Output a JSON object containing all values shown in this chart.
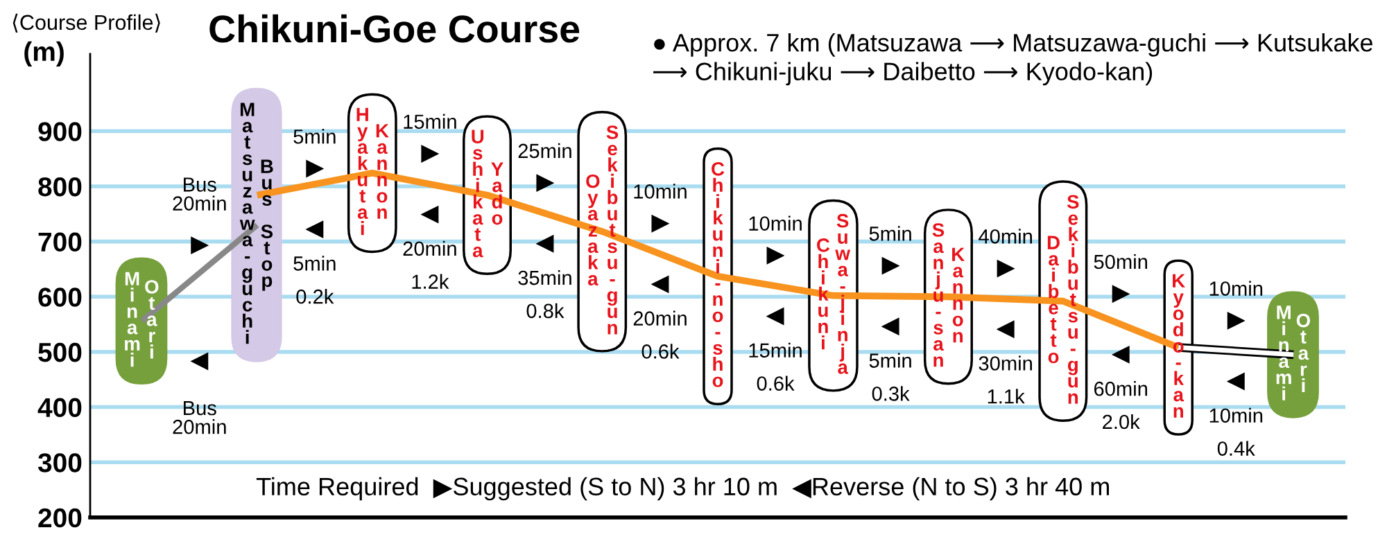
{
  "chart_data": {
    "type": "line",
    "title": "Chikuni-Goe Course",
    "subtitle": "⟨Course Profile⟩",
    "ylabel": "(m)",
    "categories": [
      "Minami Otari",
      "Matsuzawa-guchi Bus Stop",
      "Hyakutai Kannon",
      "Ushikata Yado",
      "Oyazaka Sekibutsu-gun",
      "Chikuni-no-sho",
      "Chikuni Suwa-jinja",
      "Sanju-san Kannon",
      "Daibetto Sekibutsu-gun",
      "Kyodo-kan",
      "Minami Otari"
    ],
    "series": [
      {
        "color": "#888888",
        "values": [
          556,
          730,
          null,
          null,
          null,
          null,
          null,
          null,
          null,
          null,
          null
        ]
      },
      {
        "color": "#f7931e",
        "values": [
          null,
          784,
          824,
          784,
          718,
          637,
          602,
          600,
          592,
          508,
          null
        ]
      },
      {
        "color": "#ffffff",
        "values": [
          null,
          null,
          null,
          null,
          null,
          null,
          null,
          null,
          null,
          508,
          495
        ]
      }
    ],
    "ylim": [
      200,
      1040
    ],
    "yticks": [
      200,
      300,
      400,
      500,
      600,
      700,
      800,
      900
    ],
    "grid": "y",
    "tick_labels": "y",
    "line_style": "solid",
    "annotations": [
      "● Approx. 7 km (Matsuzawa ⟶ Matsuzawa-guchi ⟶ Kutsukake\n⟶ Chikuni-juku ⟶ Daibetto ⟶ Kyodo-kan)",
      "Time Required  ▶Suggested (S to N) 3 hr 10 m  ◀Reverse (N to S) 3 hr 40 m",
      "Bus\n20min",
      "Bus\n20min",
      "5min",
      "5min",
      "0.2k",
      "15min",
      "20min",
      "1.2k",
      "25min",
      "35min",
      "0.8k",
      "10min",
      "20min",
      "0.6k",
      "10min",
      "15min",
      "0.6k",
      "5min",
      "5min",
      "0.3k",
      "40min",
      "30min",
      "1.1k",
      "50min",
      "60min",
      "2.0k",
      "10min",
      "10min",
      "0.4k"
    ]
  }
}
